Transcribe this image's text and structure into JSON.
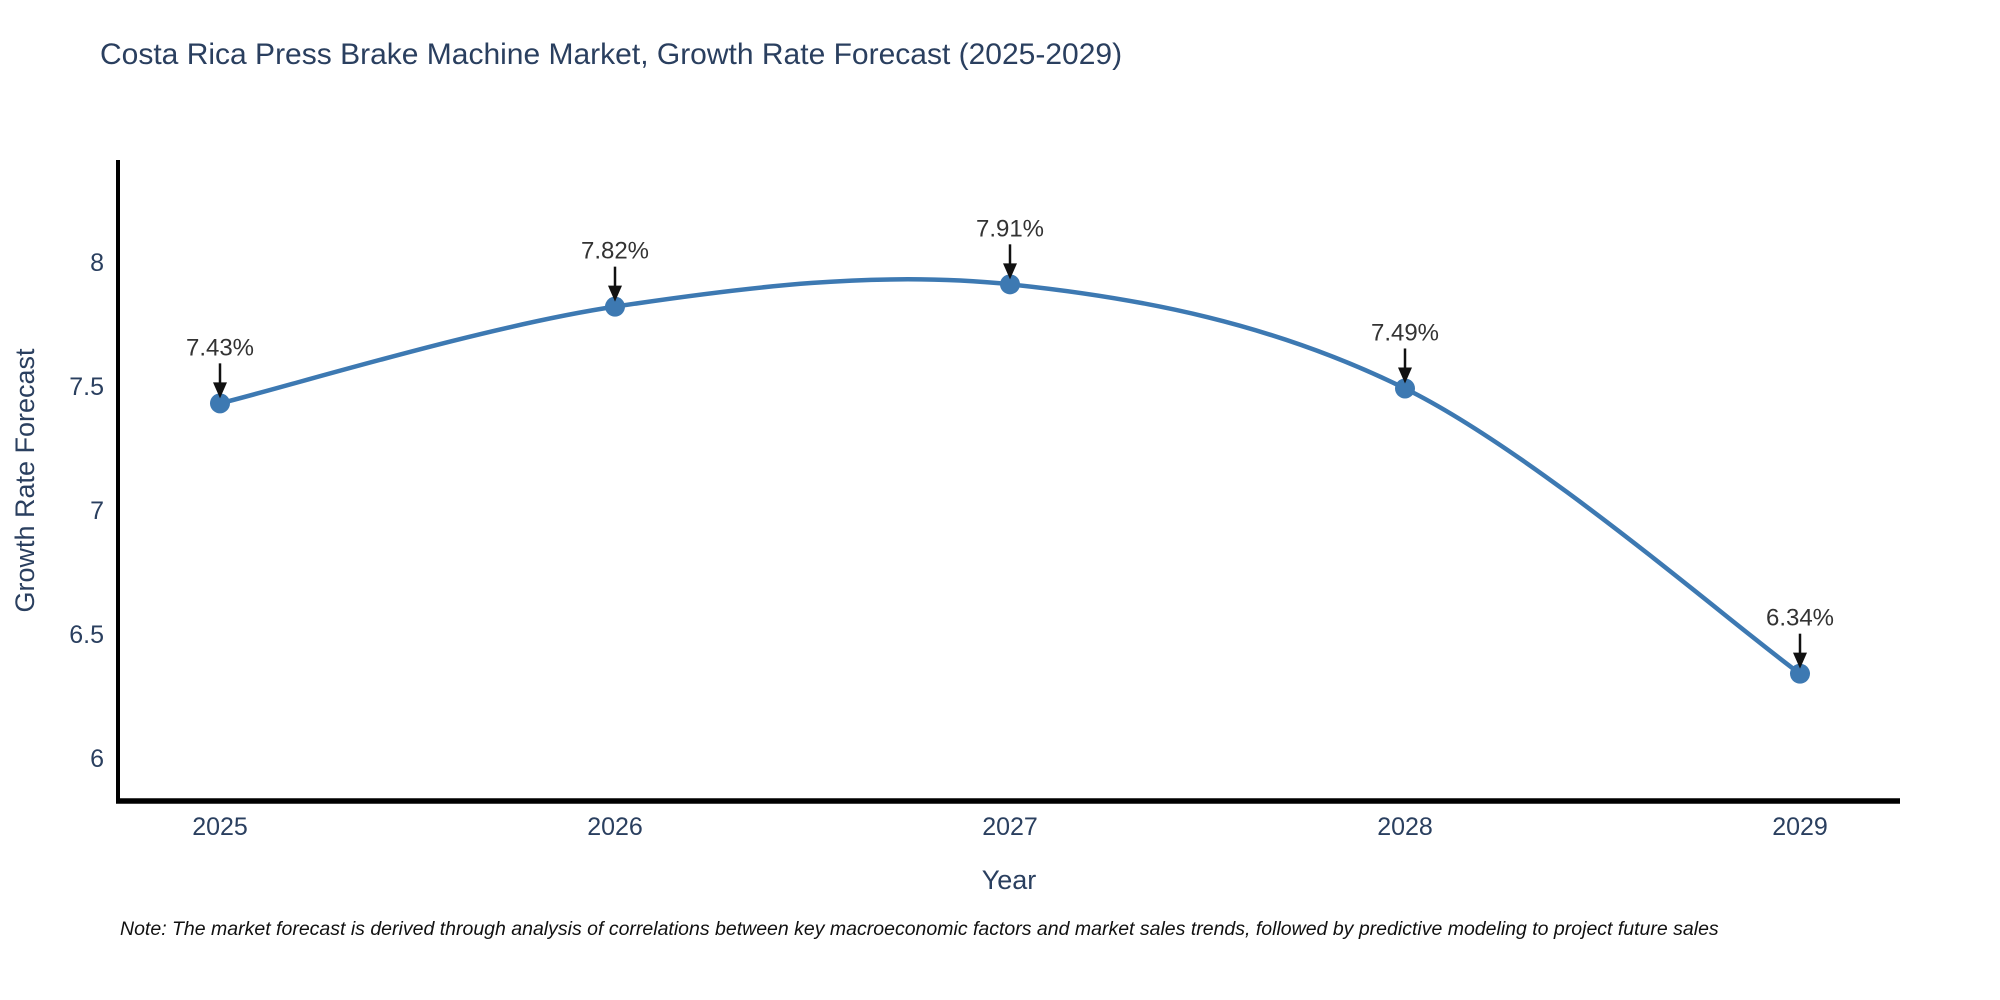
{
  "chart_data": {
    "type": "line",
    "title": "Costa Rica Press Brake Machine Market, Growth Rate Forecast (2025-2029)",
    "x": [
      2025,
      2026,
      2027,
      2028,
      2029
    ],
    "values": [
      7.43,
      7.82,
      7.91,
      7.49,
      6.34
    ],
    "point_labels": [
      "7.43%",
      "7.82%",
      "7.91%",
      "7.49%",
      "6.34%"
    ],
    "xlabel": "Year",
    "ylabel": "Growth Rate Forecast",
    "xtick_labels": [
      "2025",
      "2026",
      "2027",
      "2028",
      "2029"
    ],
    "ytick_values": [
      8,
      7.5,
      7,
      6.5,
      6
    ],
    "ytick_labels": [
      "8",
      "7.5",
      "7",
      "6.5",
      "6"
    ],
    "ylim": [
      5.83,
      8.41
    ],
    "line_shape": "spline",
    "grid": false,
    "legend": "none",
    "colors": {
      "line": "#3d79b2",
      "marker": "#3d79b2",
      "annotation_text": "#333333",
      "annotation_arrow": "#111111",
      "axis_line": "#000000",
      "tick_text": "#2a3f5f",
      "axis_title_text": "#2a3f5f",
      "title_text": "#2a3f5f"
    }
  },
  "note": "Note: The market forecast is derived through analysis of correlations between key macroeconomic factors and market sales trends, followed by predictive modeling to project future sales"
}
